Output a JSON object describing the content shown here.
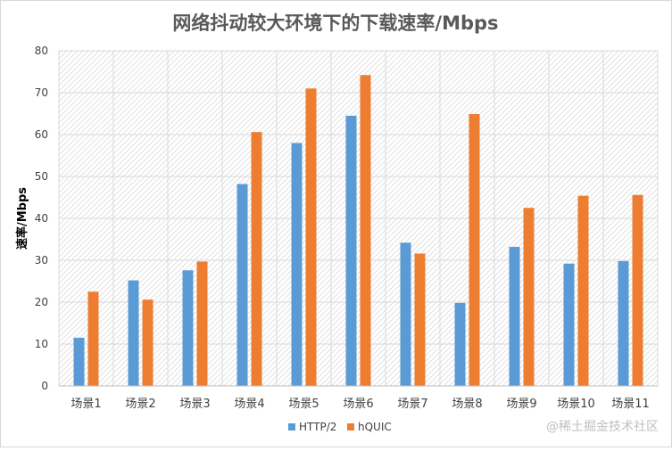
{
  "chart_data": {
    "type": "bar",
    "title": "网络抖动较大环境下的下载速率/Mbps",
    "ylabel": "速率/Mbps",
    "xlabel": "",
    "ylim": [
      0,
      80
    ],
    "yticks": [
      0,
      10,
      20,
      30,
      40,
      50,
      60,
      70,
      80
    ],
    "categories": [
      "场景1",
      "场景2",
      "场景3",
      "场景4",
      "场景5",
      "场景6",
      "场景7",
      "场景8",
      "场景9",
      "场景10",
      "场景11"
    ],
    "series": [
      {
        "name": "HTTP/2",
        "color": "#5b9bd5",
        "values": [
          11.5,
          25.2,
          27.6,
          48.2,
          58.0,
          64.5,
          34.2,
          19.8,
          33.2,
          29.2,
          29.8
        ]
      },
      {
        "name": "hQUIC",
        "color": "#ed7d31",
        "values": [
          22.5,
          20.6,
          29.7,
          60.6,
          71.0,
          74.2,
          31.6,
          64.9,
          42.5,
          45.4,
          45.6
        ]
      }
    ],
    "grid": true,
    "legend": "bottom"
  },
  "watermark": "@稀土掘金技术社区"
}
